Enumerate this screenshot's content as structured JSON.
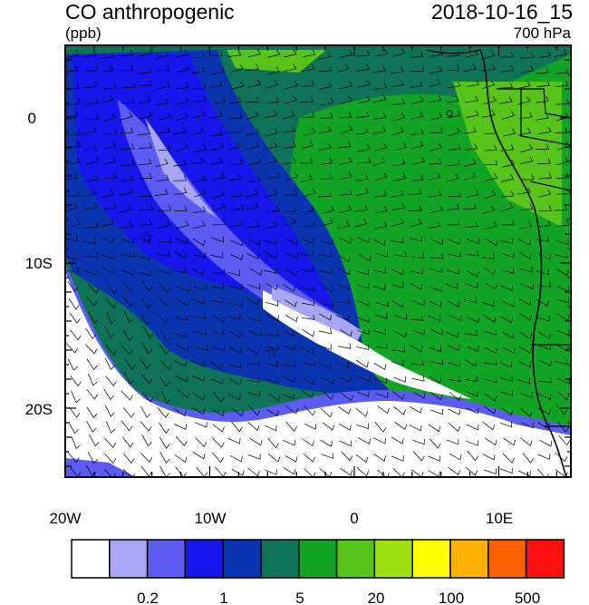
{
  "header": {
    "title": "CO anthropogenic",
    "units": "(ppb)",
    "datetime": "2018-10-16_15",
    "level": "700 hPa"
  },
  "axes": {
    "lon_labels": [
      "20W",
      "10W",
      "0",
      "10E"
    ],
    "lat_labels": [
      "0",
      "10S",
      "20S"
    ]
  },
  "colorbar": {
    "colors": [
      "#ffffff",
      "#a6a6f5",
      "#5c5cf2",
      "#1717ec",
      "#0b35b0",
      "#0f7358",
      "#12a525",
      "#58c41a",
      "#9ee014",
      "#ffff00",
      "#ffb000",
      "#ff6000",
      "#ff1010"
    ],
    "labels": [
      "0.2",
      "1",
      "5",
      "20",
      "100",
      "500"
    ]
  },
  "markers": {
    "symbol": "☆"
  }
}
